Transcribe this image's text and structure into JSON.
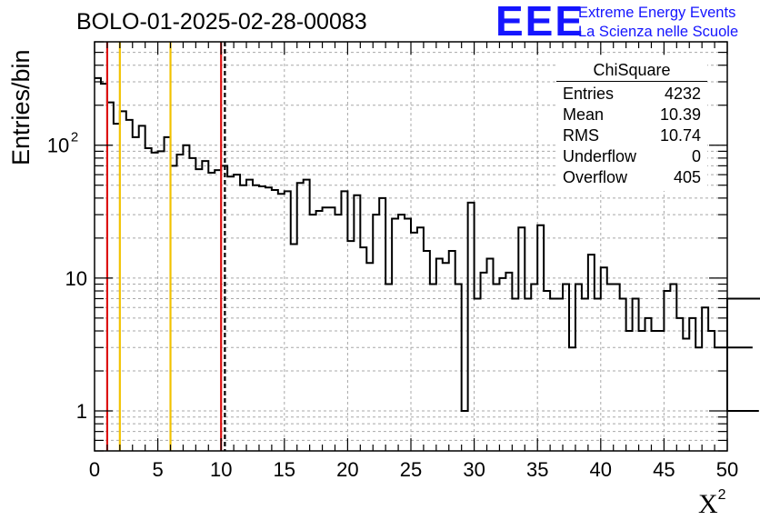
{
  "window": {
    "title": "BOLO-01-2025-02-28-00083"
  },
  "logo": {
    "mark": "EEE",
    "line1": "Extreme Energy Events",
    "line2": "La Scienza nelle Scuole"
  },
  "stats": {
    "title": "ChiSquare",
    "rows": [
      {
        "label": "Entries",
        "value": "4232"
      },
      {
        "label": "Mean",
        "value": "10.39"
      },
      {
        "label": "RMS",
        "value": "10.74"
      },
      {
        "label": "Underflow",
        "value": "0"
      },
      {
        "label": "Overflow",
        "value": "405"
      }
    ]
  },
  "chart_data": {
    "type": "histogram",
    "title": "BOLO-01-2025-02-28-00083",
    "xlabel": "X",
    "xlabel_superscript": "2",
    "ylabel": "Entries/bin",
    "xlim": [
      0,
      50
    ],
    "ylim": [
      0.5,
      600
    ],
    "yscale": "log",
    "grid": true,
    "bin_width": 0.5,
    "x_ticks": [
      "0",
      "5",
      "10",
      "15",
      "20",
      "25",
      "30",
      "35",
      "40",
      "45",
      "50"
    ],
    "y_ticks": [
      {
        "value": 1,
        "label": "1"
      },
      {
        "value": 10,
        "label": "10"
      },
      {
        "value": 100,
        "label": "10",
        "exponent": "2"
      }
    ],
    "values": [
      320,
      290,
      210,
      145,
      180,
      155,
      115,
      140,
      95,
      88,
      90,
      115,
      70,
      85,
      100,
      80,
      66,
      76,
      62,
      65,
      70,
      58,
      60,
      50,
      55,
      50,
      49,
      48,
      46,
      43,
      45,
      18,
      52,
      55,
      30,
      32,
      34,
      34,
      30,
      45,
      19,
      42,
      17,
      13,
      30,
      40,
      9,
      28,
      30,
      28,
      22,
      24,
      16,
      9,
      14,
      13,
      16,
      9,
      1,
      37,
      7,
      11,
      14,
      9,
      10,
      11,
      7,
      24,
      7,
      9,
      25,
      8,
      7,
      7,
      9,
      3,
      9,
      7,
      15,
      7,
      12,
      9,
      9,
      7,
      4,
      7,
      4,
      5,
      4,
      4,
      8,
      9,
      5,
      3.5,
      5,
      3,
      6,
      4,
      3,
      3,
      3,
      3,
      3,
      3,
      3,
      1,
      7,
      7
    ],
    "vertical_lines": [
      {
        "x": 1,
        "color": "#dd1111",
        "style": "solid"
      },
      {
        "x": 2,
        "color": "#f2c200",
        "style": "solid"
      },
      {
        "x": 6,
        "color": "#f2c200",
        "style": "solid"
      },
      {
        "x": 10,
        "color": "#dd1111",
        "style": "solid"
      },
      {
        "x": 10.3,
        "color": "#000000",
        "style": "dashed"
      }
    ]
  }
}
